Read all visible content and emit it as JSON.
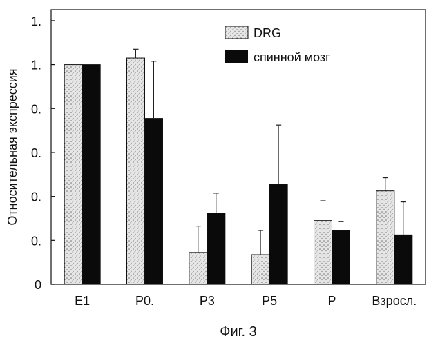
{
  "chart_data": {
    "type": "bar",
    "title": "",
    "xlabel": "",
    "ylabel": "Относительная экспрессия",
    "ylim": [
      0,
      1.25
    ],
    "y_tick_values": [
      0,
      0.2,
      0.4,
      0.6,
      0.8,
      1.0,
      1.2
    ],
    "y_tick_labels": [
      "0",
      "0.",
      "0.",
      "0.",
      "0.",
      "1.",
      "1."
    ],
    "categories": [
      "E1",
      "P0.",
      "P3",
      "P5",
      "P",
      "Взросл."
    ],
    "legend_position": "top-right",
    "grid": false,
    "series": [
      {
        "name": "DRG",
        "color": "#e0e0e0",
        "pattern": "stipple",
        "values": [
          1.0,
          1.03,
          0.145,
          0.135,
          0.29,
          0.425
        ],
        "errors": [
          0.0,
          0.04,
          0.12,
          0.11,
          0.09,
          0.06
        ]
      },
      {
        "name": "спинной мозг",
        "color": "#0a0a0a",
        "pattern": "solid",
        "values": [
          1.0,
          0.755,
          0.325,
          0.455,
          0.245,
          0.225
        ],
        "errors": [
          0.0,
          0.26,
          0.09,
          0.27,
          0.04,
          0.15
        ]
      }
    ]
  },
  "caption": "Фиг. 3"
}
